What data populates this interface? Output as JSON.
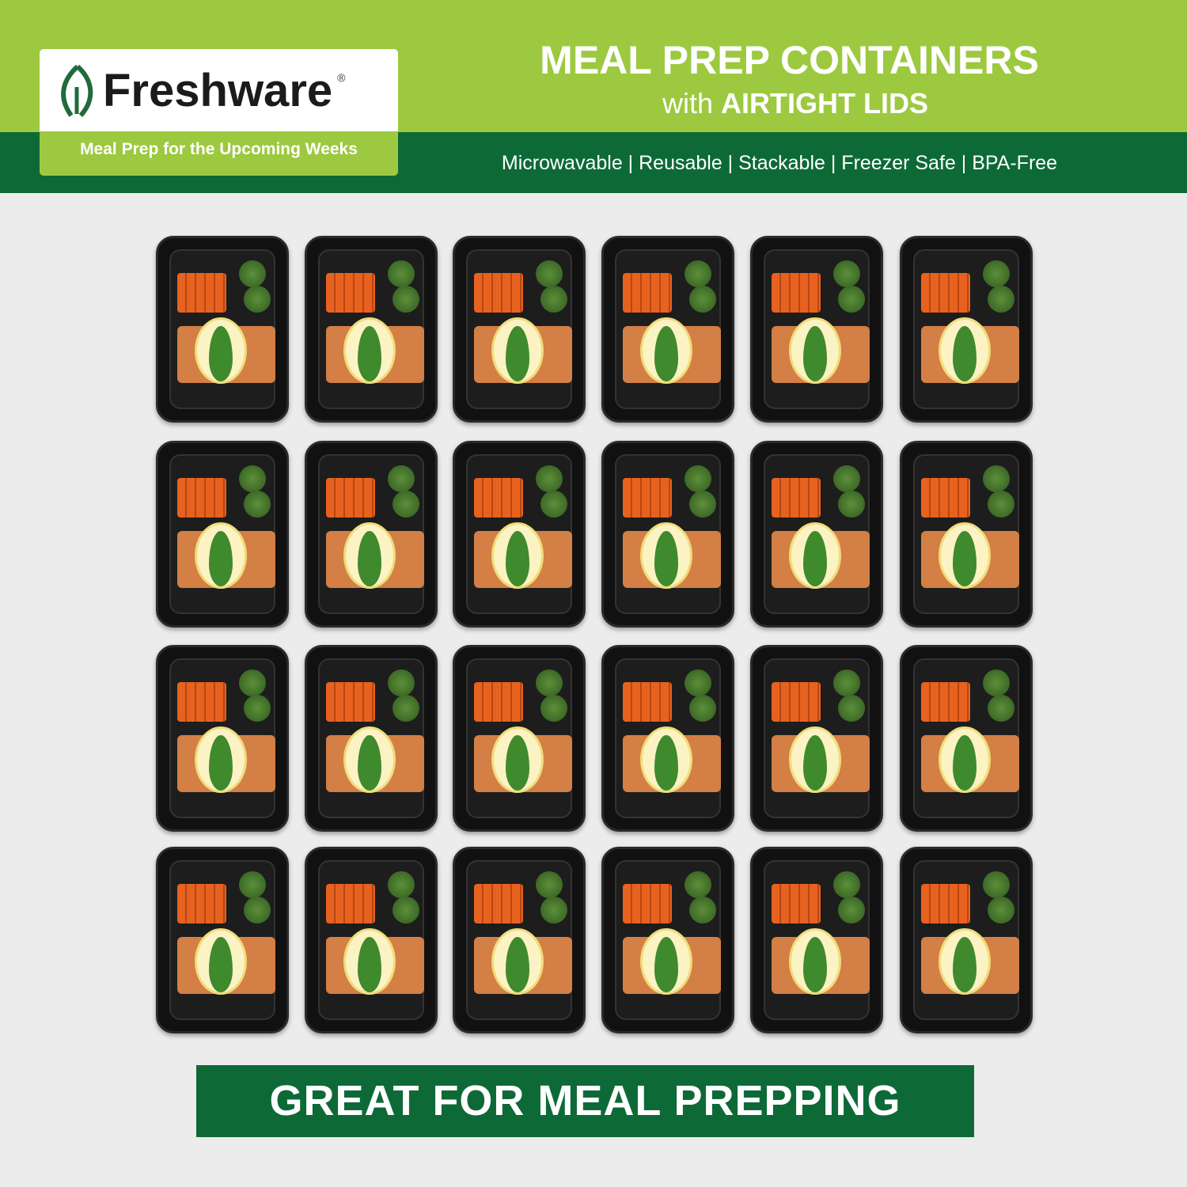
{
  "brand": {
    "name": "Freshware",
    "registered": "®",
    "tagline": "Meal Prep for the Upcoming Weeks"
  },
  "header": {
    "title": "MEAL PREP CONTAINERS",
    "subtitle_prefix": "with",
    "subtitle_bold": "AIRTIGHT LIDS",
    "features": "Microwavable | Reusable | Stackable | Freezer Safe | BPA-Free"
  },
  "product_grid": {
    "rows": 4,
    "columns": 6,
    "container_color": "#111111"
  },
  "banner": {
    "text": "GREAT FOR MEAL PREPPING"
  },
  "colors": {
    "light_green": "#9cc93f",
    "dark_green": "#0d6a37",
    "background": "#ececec"
  }
}
